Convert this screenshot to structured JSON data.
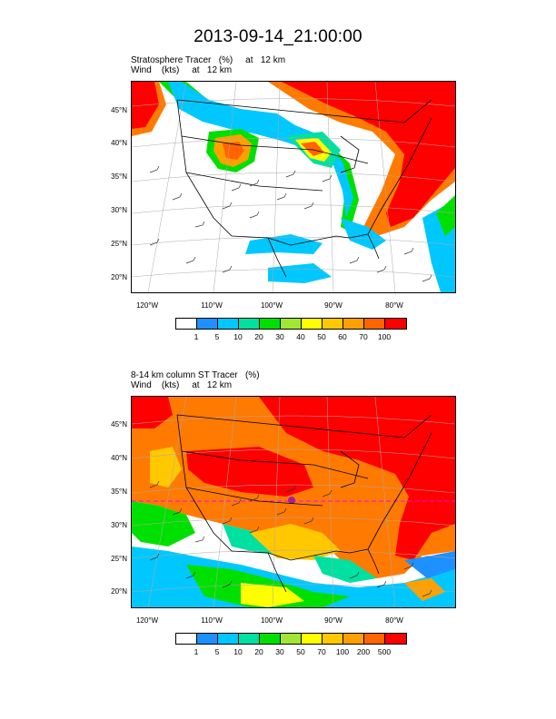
{
  "title": "2013-09-14_21:00:00",
  "panels": [
    {
      "subtitle_line1": "Stratosphere Tracer   (%)     at   12 km",
      "subtitle_line2": "Wind    (kts)     at   12 km",
      "lat_labels": [
        "45°N",
        "40°N",
        "35°N",
        "30°N",
        "25°N",
        "20°N"
      ],
      "lon_labels": [
        "120°W",
        "110°W",
        "100°W",
        "90°W",
        "80°W"
      ],
      "colorbar_labels": [
        "1",
        "5",
        "10",
        "20",
        "30",
        "40",
        "50",
        "60",
        "70",
        "100"
      ]
    },
    {
      "subtitle_line1": "8-14 km column ST Tracer   (%)",
      "subtitle_line2": "Wind    (kts)     at   12 km",
      "lat_labels": [
        "45°N",
        "40°N",
        "35°N",
        "30°N",
        "25°N",
        "20°N"
      ],
      "lon_labels": [
        "120°W",
        "110°W",
        "100°W",
        "90°W",
        "80°W"
      ],
      "colorbar_labels": [
        "1",
        "5",
        "10",
        "20",
        "30",
        "50",
        "70",
        "100",
        "200",
        "500"
      ]
    }
  ],
  "colorbar_colors": [
    "#ffffff",
    "#1e90ff",
    "#00c8ff",
    "#00e0a0",
    "#00e000",
    "#a0e632",
    "#ffff00",
    "#ffc800",
    "#ffa000",
    "#ff6400",
    "#ff0000"
  ],
  "icons": {
    "wind_barb": "wind-barb-icon"
  }
}
